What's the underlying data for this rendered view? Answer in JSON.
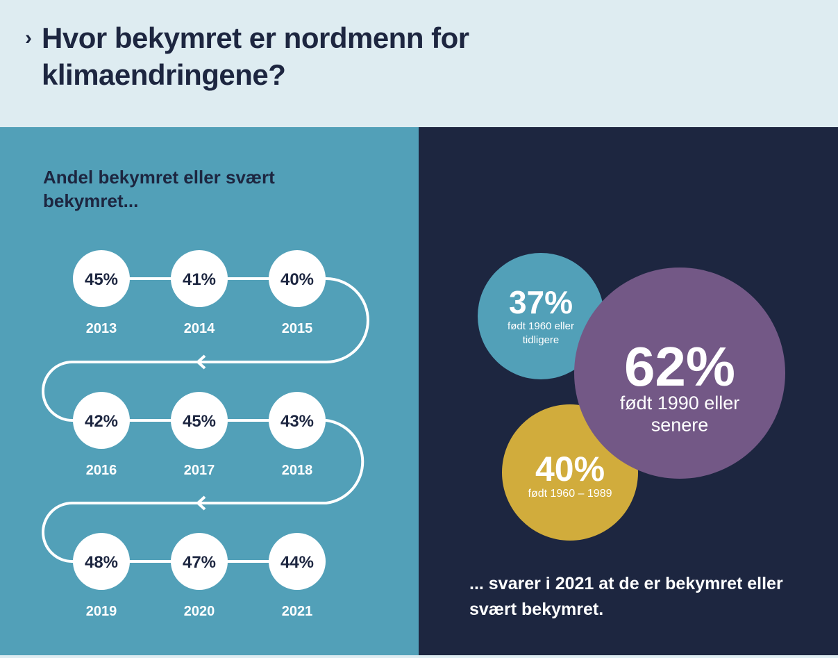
{
  "header": {
    "chevron": "›",
    "title": "Hvor bekymret er nordmenn for klimaendringene?"
  },
  "left_panel": {
    "subtitle": "Andel bekymret eller svært bekymret..."
  },
  "right_panel": {
    "bubbles": [
      {
        "value": "37%",
        "label_lines": [
          "født 1960 eller",
          "tidligere"
        ],
        "color": "#52a0b8"
      },
      {
        "value": "40%",
        "label_lines": [
          "født 1960 – 1989"
        ],
        "color": "#d1ac3c"
      },
      {
        "value": "62%",
        "label_lines": [
          "født 1990 eller",
          "senere"
        ],
        "color": "#735886"
      }
    ],
    "footer": "... svarer i 2021 at de er bekymret eller svært bekymret."
  },
  "colors": {
    "navy": "#1d2640",
    "teal": "#52a0b8",
    "header_bg": "#deecf1"
  },
  "chart_data": [
    {
      "type": "timeline",
      "title": "Andel bekymret eller svært bekymret...",
      "categories": [
        "2013",
        "2014",
        "2015",
        "2016",
        "2017",
        "2018",
        "2019",
        "2020",
        "2021"
      ],
      "values": [
        45,
        41,
        40,
        42,
        45,
        43,
        48,
        47,
        44
      ],
      "labels": [
        "45%",
        "41%",
        "40%",
        "42%",
        "45%",
        "43%",
        "48%",
        "47%",
        "44%"
      ]
    },
    {
      "type": "bubble",
      "categories": [
        "født 1960 eller tidligere",
        "født 1960 – 1989",
        "født 1990 eller senere"
      ],
      "values": [
        37,
        40,
        62
      ],
      "year": "2021"
    }
  ]
}
